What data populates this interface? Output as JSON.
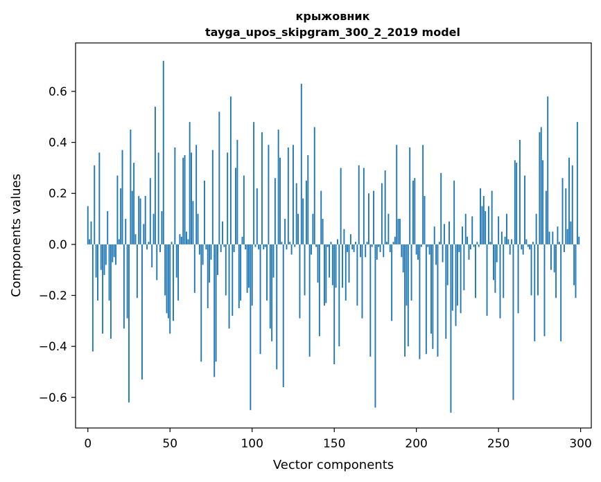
{
  "chart_data": {
    "type": "bar",
    "title": "крыжовник",
    "subtitle": "tayga_upos_skipgram_300_2_2019 model",
    "xlabel": "Vector components",
    "ylabel": "Components values",
    "xlim": [
      -7.5,
      306.5
    ],
    "ylim": [
      -0.72,
      0.79
    ],
    "xticks": [
      0,
      50,
      100,
      150,
      200,
      250,
      300
    ],
    "xtick_labels": [
      "0",
      "50",
      "100",
      "150",
      "200",
      "250",
      "300"
    ],
    "yticks": [
      -0.6,
      -0.4,
      -0.2,
      0.0,
      0.2,
      0.4,
      0.6
    ],
    "ytick_labels": [
      "−0.6",
      "−0.4",
      "−0.2",
      "0.0",
      "0.2",
      "0.4",
      "0.6"
    ],
    "bar_color": "#1f77b4",
    "x": [
      0,
      1,
      2,
      3,
      4,
      5,
      6,
      7,
      8,
      9,
      10,
      11,
      12,
      13,
      14,
      15,
      16,
      17,
      18,
      19,
      20,
      21,
      22,
      23,
      24,
      25,
      26,
      27,
      28,
      29,
      30,
      31,
      32,
      33,
      34,
      35,
      36,
      37,
      38,
      39,
      40,
      41,
      42,
      43,
      44,
      45,
      46,
      47,
      48,
      49,
      50,
      51,
      52,
      53,
      54,
      55,
      56,
      57,
      58,
      59,
      60,
      61,
      62,
      63,
      64,
      65,
      66,
      67,
      68,
      69,
      70,
      71,
      72,
      73,
      74,
      75,
      76,
      77,
      78,
      79,
      80,
      81,
      82,
      83,
      84,
      85,
      86,
      87,
      88,
      89,
      90,
      91,
      92,
      93,
      94,
      95,
      96,
      97,
      98,
      99,
      100,
      101,
      102,
      103,
      104,
      105,
      106,
      107,
      108,
      109,
      110,
      111,
      112,
      113,
      114,
      115,
      116,
      117,
      118,
      119,
      120,
      121,
      122,
      123,
      124,
      125,
      126,
      127,
      128,
      129,
      130,
      131,
      132,
      133,
      134,
      135,
      136,
      137,
      138,
      139,
      140,
      141,
      142,
      143,
      144,
      145,
      146,
      147,
      148,
      149,
      150,
      151,
      152,
      153,
      154,
      155,
      156,
      157,
      158,
      159,
      160,
      161,
      162,
      163,
      164,
      165,
      166,
      167,
      168,
      169,
      170,
      171,
      172,
      173,
      174,
      175,
      176,
      177,
      178,
      179,
      180,
      181,
      182,
      183,
      184,
      185,
      186,
      187,
      188,
      189,
      190,
      191,
      192,
      193,
      194,
      195,
      196,
      197,
      198,
      199,
      200,
      201,
      202,
      203,
      204,
      205,
      206,
      207,
      208,
      209,
      210,
      211,
      212,
      213,
      214,
      215,
      216,
      217,
      218,
      219,
      220,
      221,
      222,
      223,
      224,
      225,
      226,
      227,
      228,
      229,
      230,
      231,
      232,
      233,
      234,
      235,
      236,
      237,
      238,
      239,
      240,
      241,
      242,
      243,
      244,
      245,
      246,
      247,
      248,
      249,
      250,
      251,
      252,
      253,
      254,
      255,
      256,
      257,
      258,
      259,
      260,
      261,
      262,
      263,
      264,
      265,
      266,
      267,
      268,
      269,
      270,
      271,
      272,
      273,
      274,
      275,
      276,
      277,
      278,
      279,
      280,
      281,
      282,
      283,
      284,
      285,
      286,
      287,
      288,
      289,
      290,
      291,
      292,
      293,
      294,
      295,
      296,
      297,
      298,
      299
    ],
    "values": [
      0.15,
      0.02,
      0.09,
      -0.42,
      0.31,
      -0.13,
      -0.22,
      0.36,
      -0.1,
      -0.35,
      -0.12,
      -0.08,
      0.13,
      -0.22,
      -0.37,
      -0.07,
      -0.05,
      -0.08,
      0.27,
      0.02,
      0.22,
      0.37,
      -0.33,
      0.1,
      -0.29,
      -0.62,
      0.45,
      0.21,
      0.32,
      0.04,
      -0.21,
      0.19,
      0.18,
      -0.53,
      0.08,
      0.19,
      -0.02,
      0.01,
      0.26,
      -0.09,
      0.12,
      0.54,
      -0.14,
      0.36,
      -0.03,
      0.13,
      0.72,
      -0.2,
      -0.27,
      -0.29,
      -0.35,
      0.01,
      -0.3,
      0.38,
      -0.13,
      -0.22,
      0.04,
      0.03,
      0.34,
      0.35,
      0.05,
      0.02,
      0.48,
      0.36,
      0.17,
      -0.19,
      0.39,
      0.12,
      -0.04,
      -0.46,
      -0.08,
      0.25,
      -0.02,
      -0.25,
      -0.15,
      -0.06,
      0.37,
      -0.52,
      -0.46,
      -0.12,
      0.52,
      -0.03,
      0.09,
      -0.01,
      -0.2,
      0.36,
      -0.33,
      0.58,
      -0.28,
      -0.03,
      0.3,
      0.41,
      -0.25,
      -0.22,
      0.03,
      0.27,
      -0.02,
      -0.19,
      -0.17,
      -0.65,
      -0.24,
      0.48,
      -0.01,
      0.22,
      -0.02,
      -0.43,
      0.44,
      -0.02,
      -0.01,
      -0.22,
      0.39,
      -0.33,
      -0.38,
      -0.13,
      0.26,
      -0.49,
      0.45,
      0.34,
      0.01,
      -0.56,
      0.1,
      -0.02,
      0.38,
      0.01,
      -0.04,
      0.39,
      -0.01,
      0.24,
      0.12,
      -0.29,
      0.63,
      0.18,
      -0.2,
      0.25,
      0.35,
      -0.44,
      -0.04,
      0.12,
      0.46,
      -0.01,
      -0.15,
      -0.36,
      0.21,
      0.1,
      -0.24,
      -0.23,
      -0.01,
      -0.13,
      0.01,
      -0.16,
      -0.47,
      -0.17,
      0.02,
      -0.4,
      0.3,
      -0.17,
      0.06,
      -0.22,
      -0.03,
      -0.15,
      0.04,
      -0.02,
      -0.03,
      0.01,
      -0.24,
      0.31,
      -0.05,
      -0.29,
      0.3,
      -0.05,
      0.01,
      0.2,
      -0.44,
      -0.01,
      0.21,
      -0.64,
      -0.06,
      -0.01,
      -0.03,
      0.24,
      -0.05,
      0.29,
      0.01,
      0.12,
      -0.03,
      -0.3,
      0.01,
      0.03,
      0.39,
      0.1,
      0.1,
      -0.05,
      -0.11,
      -0.44,
      -0.24,
      -0.4,
      0.38,
      -0.22,
      0.25,
      0.26,
      -0.04,
      -0.06,
      -0.45,
      -0.01,
      0.39,
      0.19,
      -0.43,
      -0.01,
      -0.04,
      -0.35,
      -0.41,
      0.07,
      -0.08,
      -0.44,
      0.01,
      0.28,
      -0.07,
      0.08,
      -0.37,
      -0.16,
      0.09,
      -0.66,
      -0.26,
      0.25,
      -0.32,
      -0.24,
      -0.03,
      -0.27,
      0.07,
      -0.18,
      0.12,
      0.03,
      -0.06,
      -0.02,
      0.11,
      -0.01,
      -0.21,
      0.01,
      -0.01,
      0.22,
      0.15,
      0.19,
      0.13,
      -0.28,
      0.15,
      0.01,
      0.21,
      -0.14,
      -0.19,
      -0.07,
      0.11,
      -0.29,
      0.05,
      -0.21,
      0.03,
      0.12,
      0.02,
      -0.04,
      0.02,
      -0.61,
      0.33,
      0.32,
      -0.27,
      0.41,
      -0.02,
      -0.04,
      0.27,
      0.02,
      -0.01,
      -0.02,
      -0.2,
      0.01,
      -0.38,
      0.12,
      -0.2,
      0.44,
      0.46,
      0.33,
      -0.36,
      0.21,
      0.58,
      0.05,
      -0.1,
      0.05,
      -0.11,
      -0.21,
      0.07,
      0.01,
      -0.38,
      0.26,
      -0.03,
      0.22,
      0.06,
      0.34,
      0.09,
      0.31,
      -0.16,
      -0.21,
      0.48,
      0.03
    ]
  }
}
